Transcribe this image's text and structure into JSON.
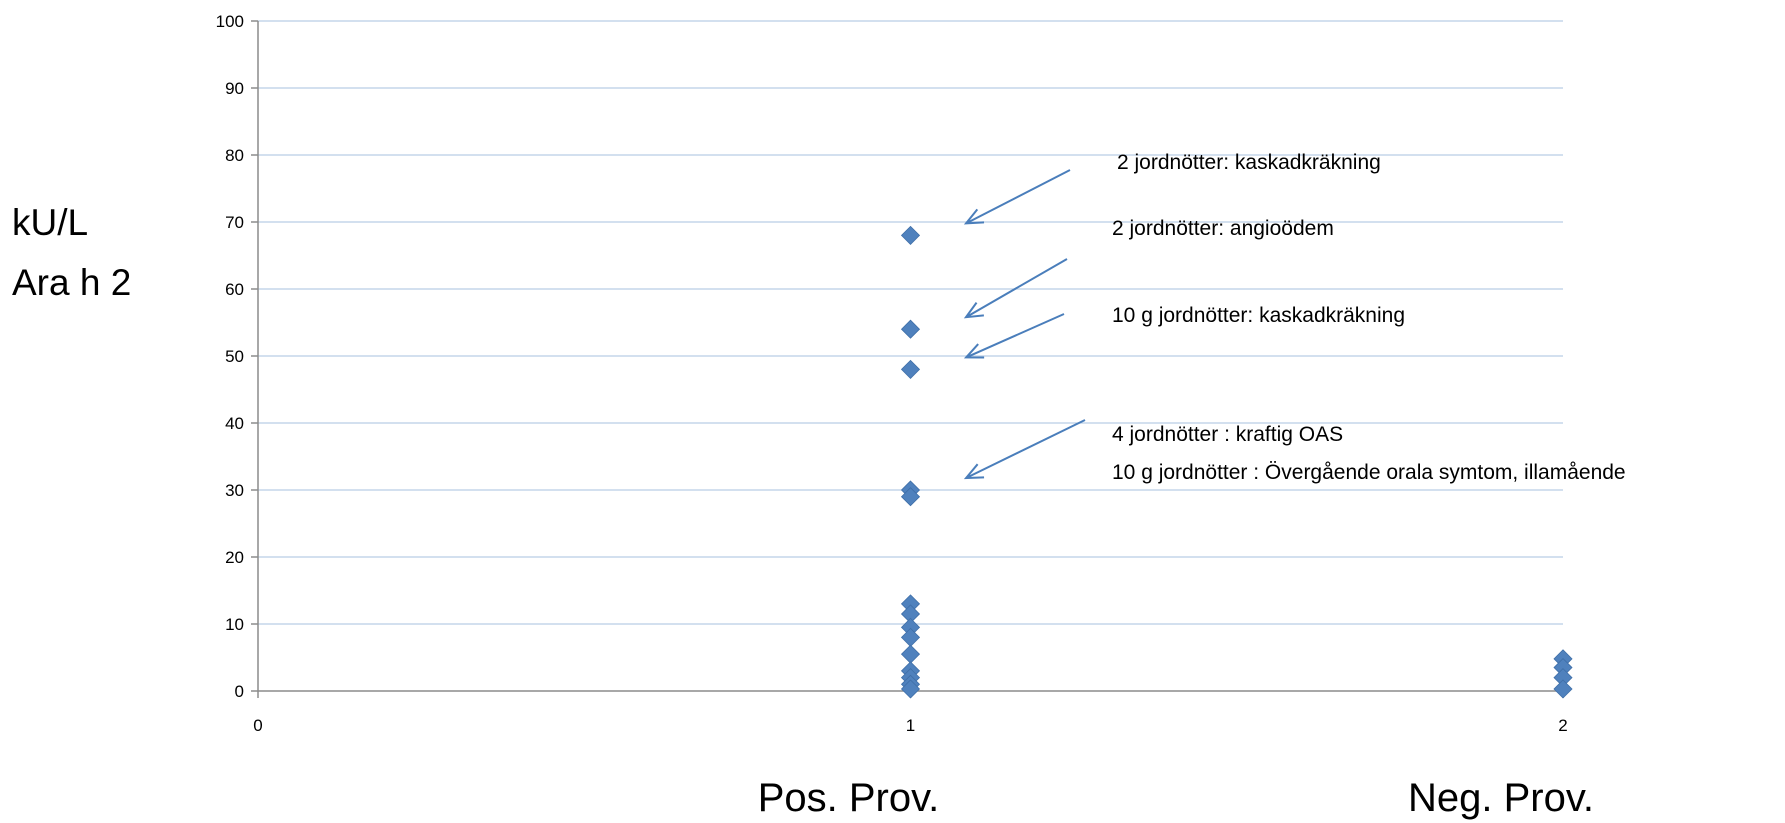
{
  "chart_data": {
    "type": "scatter",
    "ylabel_lines": [
      "kU/L",
      "Ara h 2"
    ],
    "xlim": [
      0,
      2
    ],
    "ylim": [
      0,
      100
    ],
    "x_ticks": [
      "0",
      "1",
      "2"
    ],
    "y_ticks": [
      "0",
      "10",
      "20",
      "30",
      "40",
      "50",
      "60",
      "70",
      "80",
      "90",
      "100"
    ],
    "grid": true,
    "marker_color": "#4f81bd",
    "series": [
      {
        "points": [
          {
            "x": 1,
            "y": 68
          },
          {
            "x": 1,
            "y": 54
          },
          {
            "x": 1,
            "y": 48
          },
          {
            "x": 1,
            "y": 30
          },
          {
            "x": 1,
            "y": 29
          },
          {
            "x": 1,
            "y": 13
          },
          {
            "x": 1,
            "y": 11.5
          },
          {
            "x": 1,
            "y": 9.5
          },
          {
            "x": 1,
            "y": 8
          },
          {
            "x": 1,
            "y": 5.5
          },
          {
            "x": 1,
            "y": 3
          },
          {
            "x": 1,
            "y": 2
          },
          {
            "x": 1,
            "y": 1
          },
          {
            "x": 1,
            "y": 0.3
          },
          {
            "x": 2,
            "y": 4.8
          },
          {
            "x": 2,
            "y": 3.5
          },
          {
            "x": 2,
            "y": 2
          },
          {
            "x": 2,
            "y": 0.3
          }
        ]
      }
    ],
    "category_labels": [
      {
        "text": "Pos. Prov.",
        "x": 1
      },
      {
        "text": "Neg. Prov.",
        "x": 2
      }
    ],
    "annotations": [
      {
        "text": "2 jordnötter: kaskadkräkning",
        "target": {
          "x": 1,
          "y": 68
        }
      },
      {
        "text": "2 jordnötter: angioödem",
        "target": {
          "x": 1,
          "y": 54
        }
      },
      {
        "text": "10 g jordnötter: kaskadkräkning",
        "target": {
          "x": 1,
          "y": 48
        }
      },
      {
        "text": "4 jordnötter : kraftig OAS",
        "target": {
          "x": 1,
          "y": 30
        }
      },
      {
        "text": "10 g jordnötter :  Övergående orala symtom, illamående",
        "target": null
      }
    ]
  }
}
